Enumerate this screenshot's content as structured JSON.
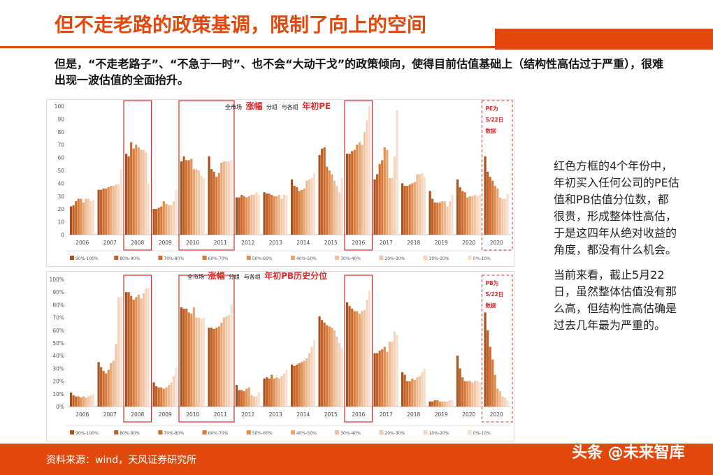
{
  "title": "但不走老路的政策基调，限制了向上的空间",
  "subtitle": "但是，“不走老路子”、“不急于一时”、也不会“大动干戈”的政策倾向，使得目前估值基础上（结构性高估过于严重），很难出现一波估值的全面抬升。",
  "side_text": {
    "p1": "红色方框的4个年份中，年初买入任何公司的PE估值和PB估值分位数，都很贵，形成整体性高估，于是这四年从绝对收益的角度，都没有什么机会。",
    "p2": "当前来看，截止5月22日，虽然整体估值没有那么高，但结构性高估确是过去几年最为严重的。"
  },
  "source": "资料来源：wind，天风证券研究所",
  "watermark": "头条 @未来智库",
  "colors": {
    "accent": "#e2480c",
    "highlight_box": "#e0282a",
    "series": [
      "#a84f1c",
      "#be5f24",
      "#cd6a2c",
      "#d67a3a",
      "#e09052",
      "#e8a672",
      "#eebb94",
      "#f2c8a8",
      "#f5d4bb",
      "#f8e0cf"
    ]
  },
  "chart_data": [
    {
      "type": "bar",
      "title_parts": [
        "全市场",
        "涨幅",
        "分组",
        "与各组",
        "年初PE"
      ],
      "categories": [
        "2006",
        "2007",
        "2008",
        "2009",
        "2010",
        "2011",
        "2012",
        "2013",
        "2014",
        "2015",
        "2016",
        "2017",
        "2018",
        "2019",
        "2020",
        "2020"
      ],
      "ylim": [
        0,
        100
      ],
      "yticks": [
        "0",
        "10",
        "20",
        "30",
        "40",
        "50",
        "60",
        "70",
        "80",
        "90",
        "100"
      ],
      "legend": [
        "90%-100%",
        "80%-90%",
        "70%-80%",
        "60%-70%",
        "50%-60%",
        "40%-50%",
        "30%-40%",
        "20%-30%",
        "10%-20%",
        "0%-10%"
      ],
      "values": [
        [
          22,
          23,
          26,
          28,
          28,
          25,
          28,
          28,
          26,
          27
        ],
        [
          35,
          35,
          36,
          36,
          37,
          38,
          38,
          39,
          39,
          51
        ],
        [
          63,
          61,
          72,
          67,
          70,
          68,
          66,
          66,
          64,
          40
        ],
        [
          20,
          20,
          21,
          22,
          26,
          24,
          23,
          23,
          26,
          35
        ],
        [
          57,
          61,
          58,
          58,
          59,
          51,
          51,
          50,
          46,
          44
        ],
        [
          61,
          51,
          49,
          45,
          48,
          56,
          57,
          57,
          57,
          58
        ],
        [
          29,
          29,
          31,
          30,
          29,
          30,
          31,
          31,
          33,
          31
        ],
        [
          33,
          32,
          32,
          31,
          30,
          30,
          31,
          28,
          31,
          31
        ],
        [
          43,
          38,
          37,
          34,
          35,
          36,
          42,
          43,
          44,
          48
        ],
        [
          62,
          67,
          68,
          53,
          50,
          47,
          42,
          38,
          33,
          44
        ],
        [
          63,
          63,
          65,
          66,
          70,
          72,
          70,
          80,
          89,
          100
        ],
        [
          43,
          47,
          55,
          58,
          68,
          66,
          44,
          44,
          61,
          97
        ],
        [
          40,
          38,
          38,
          39,
          40,
          41,
          47,
          47,
          48,
          45
        ],
        [
          34,
          28,
          25,
          25,
          25,
          26,
          26,
          22,
          26,
          31
        ],
        [
          43,
          37,
          34,
          33,
          29,
          30,
          30,
          31,
          30,
          31
        ],
        [
          61,
          49,
          45,
          42,
          38,
          36,
          29,
          28,
          28,
          32
        ]
      ],
      "highlight_categories": [
        "2008",
        "2010",
        "2011",
        "2016"
      ],
      "dashed_note": [
        "PE为",
        "5/22日",
        "数据"
      ]
    },
    {
      "type": "bar",
      "title_parts": [
        "全市场",
        "涨幅",
        "分组",
        "与各组",
        "年初PB历史分位"
      ],
      "categories": [
        "2006",
        "2007",
        "2008",
        "2009",
        "2010",
        "2011",
        "2012",
        "2013",
        "2014",
        "2015",
        "2016",
        "2017",
        "2018",
        "2019",
        "2020",
        "2020"
      ],
      "ylim": [
        0,
        100
      ],
      "yticks": [
        "0%",
        "10%",
        "20%",
        "30%",
        "40%",
        "50%",
        "60%",
        "70%",
        "80%",
        "90%",
        "100%"
      ],
      "legend": [
        "90%-100%",
        "80%-90%",
        "70%-80%",
        "60%-70%",
        "50%-60%",
        "40%-50%",
        "30%-40%",
        "20%-30%",
        "10%-20%",
        "0%-10%"
      ],
      "values": [
        [
          11,
          9,
          8,
          8,
          7,
          8,
          7,
          8,
          9,
          10
        ],
        [
          35,
          31,
          28,
          26,
          29,
          34,
          36,
          49,
          86,
          86
        ],
        [
          90,
          90,
          87,
          84,
          86,
          88,
          85,
          89,
          93,
          93
        ],
        [
          19,
          16,
          15,
          15,
          14,
          15,
          17,
          19,
          24,
          31
        ],
        [
          78,
          77,
          77,
          74,
          73,
          78,
          70,
          70,
          69,
          70
        ],
        [
          62,
          62,
          61,
          62,
          63,
          66,
          70,
          71,
          72,
          80
        ],
        [
          17,
          13,
          13,
          12,
          14,
          15,
          9,
          8,
          8,
          11
        ],
        [
          22,
          23,
          22,
          25,
          22,
          23,
          22,
          24,
          26,
          29
        ],
        [
          33,
          32,
          33,
          34,
          35,
          36,
          38,
          42,
          47,
          52
        ],
        [
          71,
          68,
          66,
          64,
          63,
          62,
          60,
          55,
          50,
          46
        ],
        [
          82,
          79,
          77,
          75,
          75,
          73,
          75,
          76,
          84,
          91
        ],
        [
          42,
          42,
          44,
          45,
          47,
          43,
          51,
          51,
          59,
          56
        ],
        [
          27,
          25,
          20,
          20,
          22,
          21,
          23,
          24,
          27,
          30
        ],
        [
          4,
          4,
          5,
          5,
          4,
          4,
          4,
          4,
          5,
          5
        ],
        [
          40,
          30,
          23,
          20,
          20,
          20,
          19,
          20,
          20,
          19
        ],
        [
          74,
          60,
          47,
          37,
          25,
          14,
          12,
          8,
          7,
          5
        ]
      ],
      "highlight_categories": [
        "2008",
        "2010",
        "2011",
        "2016"
      ],
      "dashed_note": [
        "PB为",
        "5/22日",
        "数据"
      ]
    }
  ]
}
